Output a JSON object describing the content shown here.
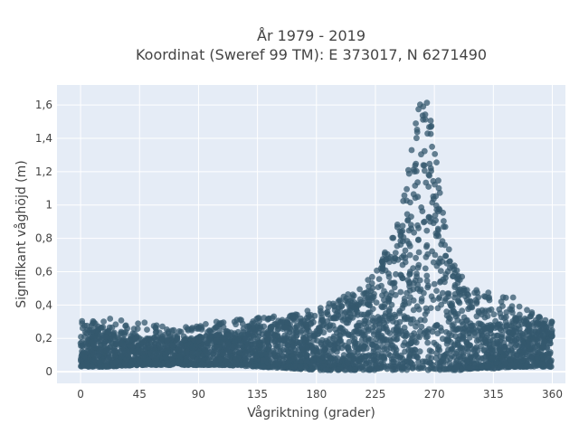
{
  "chart_data": {
    "type": "scatter",
    "title_line1": "År 1979 - 2019",
    "title_line2": "Koordinat (Sweref 99 TM): E 373017, N 6271490",
    "xlabel": "Vågriktning (grader)",
    "ylabel": "Signifikant våghöjd (m)",
    "xlim": [
      -18,
      370
    ],
    "ylim": [
      -0.07,
      1.72
    ],
    "x_ticks": [
      0,
      45,
      90,
      135,
      180,
      225,
      270,
      315,
      360
    ],
    "x_tick_labels": [
      "0",
      "45",
      "90",
      "135",
      "180",
      "225",
      "270",
      "315",
      "360"
    ],
    "y_ticks": [
      0,
      0.2,
      0.4,
      0.6,
      0.8,
      1.0,
      1.2,
      1.4,
      1.6
    ],
    "y_tick_labels": [
      "0",
      "0,2",
      "0,4",
      "0,6",
      "0,8",
      "1",
      "1,2",
      "1,4",
      "1,6"
    ],
    "grid": true,
    "legend": "none",
    "marker_color": "#34586e",
    "plot_background": "#e5ecf6",
    "density_envelope": {
      "x": [
        0,
        20,
        45,
        70,
        90,
        110,
        135,
        160,
        180,
        200,
        215,
        225,
        235,
        245,
        252,
        258,
        262,
        266,
        270,
        275,
        280,
        290,
        300,
        315,
        330,
        345,
        360
      ],
      "y_min": [
        0.03,
        0.03,
        0.04,
        0.04,
        0.04,
        0.04,
        0.03,
        0.02,
        0.01,
        0.01,
        0.01,
        0.01,
        0.01,
        0.01,
        0.01,
        0.01,
        0.01,
        0.01,
        0.01,
        0.01,
        0.01,
        0.01,
        0.02,
        0.02,
        0.03,
        0.03,
        0.03
      ],
      "y_typical_max": [
        0.27,
        0.25,
        0.21,
        0.2,
        0.21,
        0.23,
        0.27,
        0.3,
        0.34,
        0.4,
        0.46,
        0.55,
        0.68,
        0.9,
        1.18,
        1.5,
        1.6,
        1.55,
        1.3,
        0.95,
        0.7,
        0.5,
        0.4,
        0.36,
        0.33,
        0.31,
        0.29
      ],
      "y_outlier_max": [
        0.31,
        0.32,
        0.3,
        0.27,
        0.28,
        0.31,
        0.33,
        0.34,
        0.38,
        0.45,
        0.52,
        0.6,
        0.76,
        1.0,
        1.3,
        1.62,
        1.64,
        1.6,
        1.45,
        1.05,
        0.8,
        0.58,
        0.5,
        0.48,
        0.45,
        0.36,
        0.3
      ]
    }
  }
}
